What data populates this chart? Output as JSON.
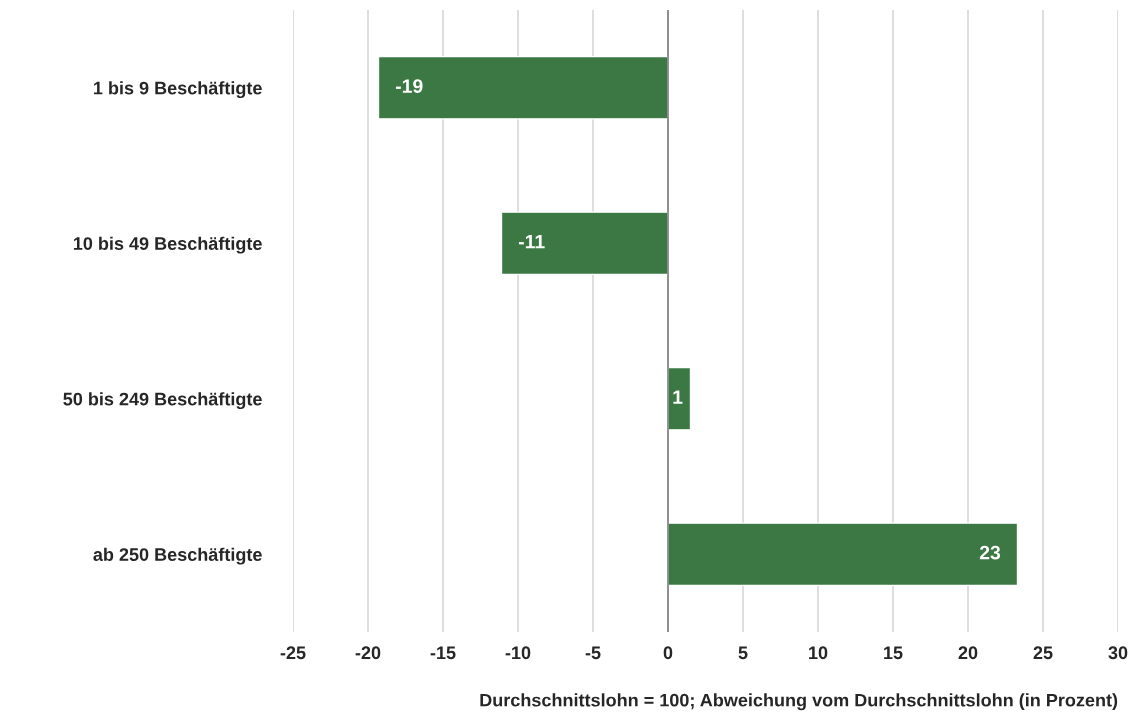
{
  "chart_data": {
    "type": "bar",
    "orientation": "horizontal",
    "categories": [
      "1 bis 9 Beschäftigte",
      "10 bis 49 Beschäftigte",
      "50 bis 249 Beschäftigte",
      "ab 250 Beschäftigte"
    ],
    "values": [
      -19.3,
      -11.1,
      1.5,
      23.3
    ],
    "value_labels": [
      "-19",
      "-11",
      "1",
      "23"
    ],
    "color": "#3b7844",
    "xlim": [
      -25,
      30
    ],
    "xticks": [
      -25,
      -20,
      -15,
      -10,
      -5,
      0,
      5,
      10,
      15,
      20,
      25,
      30
    ],
    "xlabel": "Durchschnittslohn = 100; Abweichung vom Durchschnittslohn (in Prozent)",
    "grid": "x",
    "legend": false,
    "ref_lines": [
      {
        "axis": "x",
        "value": 0,
        "color": "#808080"
      }
    ]
  }
}
